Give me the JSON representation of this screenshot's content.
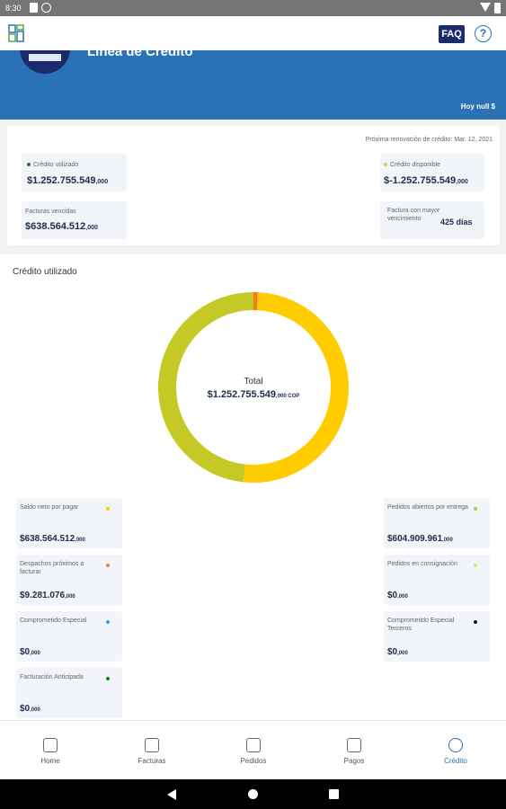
{
  "status_bar": {
    "time": "8:30"
  },
  "app_bar": {
    "faq_label": "FAQ",
    "help_label": "?"
  },
  "hero": {
    "title": "Línea de Crédito",
    "today": "Hoy null $"
  },
  "summary": {
    "renewal": "Próxima renovación de crédito: Mar. 12, 2021",
    "credit_used": {
      "label": "Crédito utilizado",
      "value": "$1.252.755.549",
      "cents": ",000",
      "color": "#1f7a1f"
    },
    "credit_available": {
      "label": "Crédito disponible",
      "value": "$-1.252.755.549",
      "cents": ",000",
      "color": "#c8dc4a"
    },
    "overdue": {
      "label": "Facturas vencidas",
      "value": "$638.564.512",
      "cents": ",000"
    },
    "oldest_invoice": {
      "label": "Factura con mayor vencimiento",
      "value": "425 días"
    }
  },
  "chart_section": {
    "title": "Crédito utilizado",
    "total_label": "Total",
    "total_value": "$1.252.755.549",
    "total_suffix": ",000 COP"
  },
  "chart_data": {
    "type": "pie",
    "donut": true,
    "categories": [
      "Saldo neto por pagar",
      "Despachos próximos a facturar",
      "Comprometido Especial",
      "Facturación Anticipada",
      "Pedidos abiertos por entrega",
      "Pedidos en consignación",
      "Comprometido Especial Terceros"
    ],
    "values": [
      638564512,
      9281076,
      0,
      0,
      604909961,
      0,
      0
    ],
    "colors": [
      "#ffcc00",
      "#f07d1e",
      "#3aa0e0",
      "#1f7a1f",
      "#c4c925",
      "#dfe94a",
      "#111111"
    ]
  },
  "legend": {
    "left": [
      {
        "label": "Saldo neto por pagar",
        "value": "$638.564.512",
        "cents": ",000",
        "color": "#ffcc00"
      },
      {
        "label": "Despachos próximos a facturar",
        "value": "$9.281.076",
        "cents": ",000",
        "color": "#f07d1e"
      },
      {
        "label": "Comprometido Especial",
        "value": "$0",
        "cents": ",000",
        "color": "#3aa0e0"
      },
      {
        "label": "Facturación Anticipada",
        "value": "$0",
        "cents": ",000",
        "color": "#1f7a1f"
      }
    ],
    "right": [
      {
        "label": "Pedidos abiertos por entrega",
        "value": "$604.909.961",
        "cents": ",000",
        "color": "#c4c925"
      },
      {
        "label": "Pedidos en consignación",
        "value": "$0",
        "cents": ",000",
        "color": "#dfe94a"
      },
      {
        "label": "Comprometido Especial Terceros",
        "value": "$0",
        "cents": ",000",
        "color": "#111111"
      }
    ]
  },
  "bottom_nav": [
    {
      "label": "Home",
      "icon": "home-icon"
    },
    {
      "label": "Facturas",
      "icon": "invoices-icon"
    },
    {
      "label": "Pedidos",
      "icon": "orders-icon"
    },
    {
      "label": "Pagos",
      "icon": "payments-icon"
    },
    {
      "label": "Crédito",
      "icon": "credit-icon",
      "active": true
    }
  ]
}
